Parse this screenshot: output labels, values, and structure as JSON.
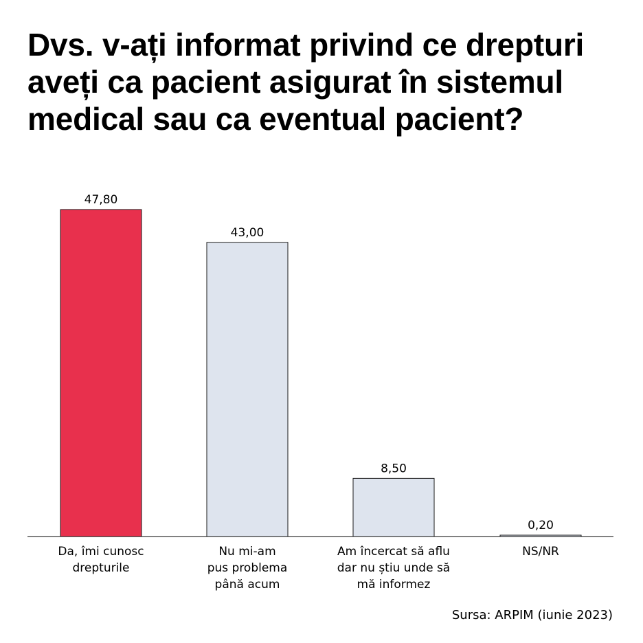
{
  "chart_data": {
    "type": "bar",
    "title": "Dvs. v-ați informat privind ce drepturi aveți ca pacient asigurat în sistemul medical sau ca eventual pacient?",
    "categories": [
      [
        "Da, îmi cunosc",
        "drepturile"
      ],
      [
        "Nu mi-am",
        "pus problema",
        "până acum"
      ],
      [
        "Am încercat să aflu",
        "dar nu știu unde să",
        "mă informez"
      ],
      [
        "NS/NR"
      ]
    ],
    "values": [
      47.8,
      43.0,
      8.5,
      0.2
    ],
    "value_labels": [
      "47,80",
      "43,00",
      "8,50",
      "0,20"
    ],
    "ylim": [
      0,
      50
    ],
    "grid": false,
    "colors": {
      "highlight": "#E8304D",
      "default": "#DEE4EE",
      "outline": "#1a1a1a",
      "axis": "#000000"
    },
    "highlight_index": 0,
    "source": "Sursa: ARPIM (iunie 2023)"
  }
}
